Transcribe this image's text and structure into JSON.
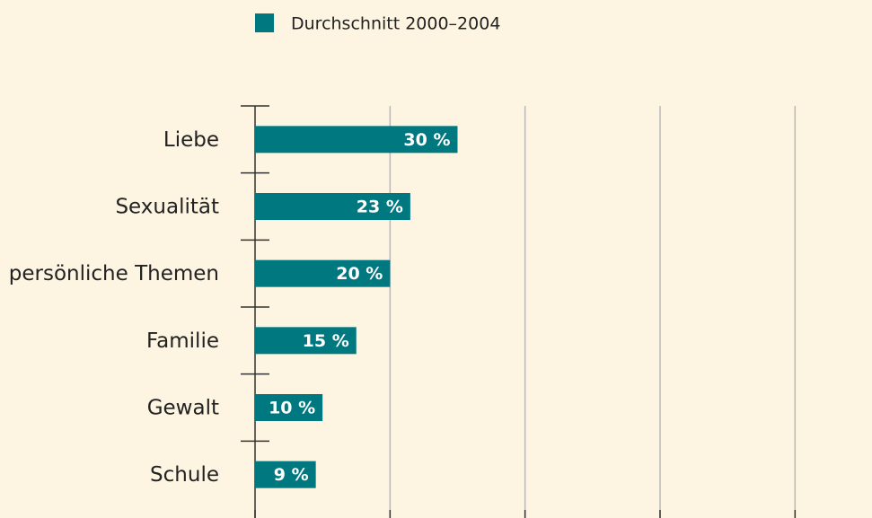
{
  "chart_data": {
    "type": "bar",
    "orientation": "horizontal",
    "categories": [
      "Liebe",
      "Sexualität",
      "persönliche Themen",
      "Familie",
      "Gewalt",
      "Schule"
    ],
    "series": [
      {
        "name": "Durchschnitt 2000–2004",
        "color": "#00787f",
        "values": [
          30,
          23,
          20,
          15,
          10,
          9
        ],
        "value_labels": [
          "30 %",
          "23 %",
          "20 %",
          "15 %",
          "10 %",
          "9 %"
        ]
      }
    ],
    "xlim": [
      0,
      91.4
    ],
    "xticks": [
      0,
      20,
      40,
      60,
      80
    ],
    "grid": true,
    "legend": "top"
  }
}
